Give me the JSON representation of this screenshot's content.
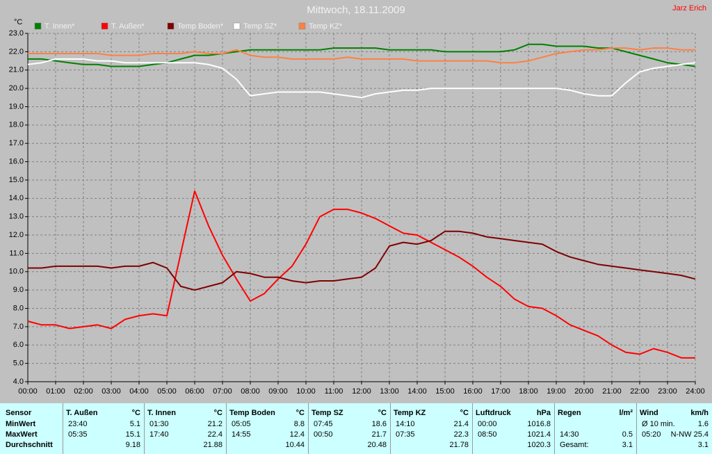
{
  "chart_data": {
    "type": "line",
    "title": "Mittwoch, 18.11.2009",
    "author": "Jarz Erich",
    "y_label": "°C",
    "x": [
      0,
      0.5,
      1,
      1.5,
      2,
      2.5,
      3,
      3.5,
      4,
      4.5,
      5,
      5.5,
      6,
      6.5,
      7,
      7.5,
      8,
      8.5,
      9,
      9.5,
      10,
      10.5,
      11,
      11.5,
      12,
      12.5,
      13,
      13.5,
      14,
      14.5,
      15,
      15.5,
      16,
      16.5,
      17,
      17.5,
      18,
      18.5,
      19,
      19.5,
      20,
      20.5,
      21,
      21.5,
      22,
      22.5,
      23,
      23.5,
      24
    ],
    "xlim": [
      0,
      24
    ],
    "xticks": [
      {
        "value": 0,
        "label": "00:00"
      },
      {
        "value": 1,
        "label": "01:00"
      },
      {
        "value": 2,
        "label": "02:00"
      },
      {
        "value": 3,
        "label": "03:00"
      },
      {
        "value": 4,
        "label": "04:00"
      },
      {
        "value": 5,
        "label": "05:00"
      },
      {
        "value": 6,
        "label": "06:00"
      },
      {
        "value": 7,
        "label": "07:00"
      },
      {
        "value": 8,
        "label": "08:00"
      },
      {
        "value": 9,
        "label": "09:00"
      },
      {
        "value": 10,
        "label": "10:00"
      },
      {
        "value": 11,
        "label": "11:00"
      },
      {
        "value": 12,
        "label": "12:00"
      },
      {
        "value": 13,
        "label": "13:00"
      },
      {
        "value": 14,
        "label": "14:00"
      },
      {
        "value": 15,
        "label": "15:00"
      },
      {
        "value": 16,
        "label": "16:00"
      },
      {
        "value": 17,
        "label": "17:00"
      },
      {
        "value": 18,
        "label": "18:00"
      },
      {
        "value": 19,
        "label": "19:00"
      },
      {
        "value": 20,
        "label": "20:00"
      },
      {
        "value": 21,
        "label": "21:00"
      },
      {
        "value": 22,
        "label": "22:00"
      },
      {
        "value": 23,
        "label": "23:00"
      },
      {
        "value": 24,
        "label": "24:00"
      }
    ],
    "ylim": [
      4,
      23
    ],
    "yticks": [
      {
        "value": 4,
        "label": "4.0"
      },
      {
        "value": 5,
        "label": "5.0"
      },
      {
        "value": 6,
        "label": "6.0"
      },
      {
        "value": 7,
        "label": "7.0"
      },
      {
        "value": 8,
        "label": "8.0"
      },
      {
        "value": 9,
        "label": "9.0"
      },
      {
        "value": 10,
        "label": "10.0"
      },
      {
        "value": 11,
        "label": "11.0"
      },
      {
        "value": 12,
        "label": "12.0"
      },
      {
        "value": 13,
        "label": "13.0"
      },
      {
        "value": 14,
        "label": "14.0"
      },
      {
        "value": 15,
        "label": "15.0"
      },
      {
        "value": 16,
        "label": "16.0"
      },
      {
        "value": 17,
        "label": "17.0"
      },
      {
        "value": 18,
        "label": "18.0"
      },
      {
        "value": 19,
        "label": "19.0"
      },
      {
        "value": 20,
        "label": "20.0"
      },
      {
        "value": 21,
        "label": "21.0"
      },
      {
        "value": 22,
        "label": "22.0"
      },
      {
        "value": 23,
        "label": "23.0"
      }
    ],
    "grid": true,
    "series": [
      {
        "name": "T. Innen*",
        "color": "#008000",
        "values": [
          21.6,
          21.6,
          21.5,
          21.4,
          21.3,
          21.3,
          21.2,
          21.2,
          21.2,
          21.3,
          21.4,
          21.6,
          21.8,
          21.8,
          21.9,
          22.0,
          22.1,
          22.1,
          22.1,
          22.1,
          22.1,
          22.1,
          22.2,
          22.2,
          22.2,
          22.2,
          22.1,
          22.1,
          22.1,
          22.1,
          22.0,
          22.0,
          22.0,
          22.0,
          22.0,
          22.1,
          22.4,
          22.4,
          22.3,
          22.3,
          22.3,
          22.2,
          22.2,
          22.0,
          21.8,
          21.6,
          21.4,
          21.3,
          21.2
        ]
      },
      {
        "name": "T. Außen*",
        "color": "#ff0000",
        "values": [
          7.3,
          7.1,
          7.1,
          6.9,
          7.0,
          7.1,
          6.9,
          7.4,
          7.6,
          7.7,
          7.6,
          11.0,
          14.4,
          12.5,
          10.9,
          9.6,
          8.4,
          8.8,
          9.6,
          10.3,
          11.5,
          13.0,
          13.4,
          13.4,
          13.2,
          12.9,
          12.5,
          12.1,
          12.0,
          11.6,
          11.2,
          10.8,
          10.3,
          9.7,
          9.2,
          8.5,
          8.1,
          8.0,
          7.6,
          7.1,
          6.8,
          6.5,
          6.0,
          5.6,
          5.5,
          5.8,
          5.6,
          5.3,
          5.3
        ]
      },
      {
        "name": "Temp Boden*",
        "color": "#800000",
        "values": [
          10.2,
          10.2,
          10.3,
          10.3,
          10.3,
          10.3,
          10.2,
          10.3,
          10.3,
          10.5,
          10.2,
          9.2,
          9.0,
          9.2,
          9.4,
          10.0,
          9.9,
          9.7,
          9.7,
          9.5,
          9.4,
          9.5,
          9.5,
          9.6,
          9.7,
          10.2,
          11.4,
          11.6,
          11.5,
          11.7,
          12.2,
          12.2,
          12.1,
          11.9,
          11.8,
          11.7,
          11.6,
          11.5,
          11.1,
          10.8,
          10.6,
          10.4,
          10.3,
          10.2,
          10.1,
          10.0,
          9.9,
          9.8,
          9.6
        ]
      },
      {
        "name": "Temp SZ*",
        "color": "#ffffff",
        "values": [
          21.3,
          21.4,
          21.6,
          21.6,
          21.6,
          21.5,
          21.5,
          21.4,
          21.4,
          21.4,
          21.4,
          21.4,
          21.4,
          21.3,
          21.1,
          20.5,
          19.6,
          19.7,
          19.8,
          19.8,
          19.8,
          19.8,
          19.7,
          19.6,
          19.5,
          19.7,
          19.8,
          19.9,
          19.9,
          20.0,
          20.0,
          20.0,
          20.0,
          20.0,
          20.0,
          20.0,
          20.0,
          20.0,
          20.0,
          19.9,
          19.7,
          19.6,
          19.6,
          20.3,
          20.9,
          21.1,
          21.2,
          21.3,
          21.4
        ]
      },
      {
        "name": "Temp KZ*",
        "color": "#ff8040",
        "values": [
          21.9,
          21.9,
          21.9,
          21.9,
          21.9,
          21.9,
          21.8,
          21.8,
          21.8,
          21.9,
          21.9,
          21.9,
          22.0,
          21.9,
          21.9,
          22.1,
          21.8,
          21.7,
          21.7,
          21.6,
          21.6,
          21.6,
          21.6,
          21.7,
          21.6,
          21.6,
          21.6,
          21.6,
          21.5,
          21.5,
          21.5,
          21.5,
          21.5,
          21.5,
          21.4,
          21.4,
          21.5,
          21.7,
          21.9,
          22.0,
          22.1,
          22.1,
          22.2,
          22.2,
          22.1,
          22.2,
          22.2,
          22.1,
          22.1
        ]
      }
    ]
  },
  "stats_table": {
    "row_labels": [
      "Sensor",
      "MinWert",
      "MaxWert",
      "Durchschnitt"
    ],
    "groups": [
      {
        "name": "T. Außen",
        "unit": "°C",
        "min": {
          "time": "23:40",
          "value": "5.1"
        },
        "max": {
          "time": "05:35",
          "value": "15.1"
        },
        "avg": {
          "value": "9.18"
        }
      },
      {
        "name": "T. Innen",
        "unit": "°C",
        "min": {
          "time": "01:30",
          "value": "21.2"
        },
        "max": {
          "time": "17:40",
          "value": "22.4"
        },
        "avg": {
          "value": "21.88"
        }
      },
      {
        "name": "Temp Boden",
        "unit": "°C",
        "min": {
          "time": "05:05",
          "value": "8.8"
        },
        "max": {
          "time": "14:55",
          "value": "12.4"
        },
        "avg": {
          "value": "10.44"
        }
      },
      {
        "name": "Temp SZ",
        "unit": "°C",
        "min": {
          "time": "07:45",
          "value": "18.6"
        },
        "max": {
          "time": "00:50",
          "value": "21.7"
        },
        "avg": {
          "value": "20.48"
        }
      },
      {
        "name": "Temp KZ",
        "unit": "°C",
        "min": {
          "time": "14:10",
          "value": "21.4"
        },
        "max": {
          "time": "07:35",
          "value": "22.3"
        },
        "avg": {
          "value": "21.78"
        }
      },
      {
        "name": "Luftdruck",
        "unit": "hPa",
        "min": {
          "time": "00:00",
          "value": "1016.8"
        },
        "max": {
          "time": "08:50",
          "value": "1021.4"
        },
        "avg": {
          "value": "1020.3"
        }
      },
      {
        "name": "Regen",
        "unit": "l/m²",
        "max": {
          "time": "14:30",
          "value": "0.5"
        },
        "avg": {
          "time": "Gesamt:",
          "value": "3.1"
        }
      },
      {
        "name": "Wind",
        "unit": "km/h",
        "min": {
          "time": "Ø 10 min.",
          "value": "1.6"
        },
        "max": {
          "time": "05:20",
          "value": "N-NW 25.4"
        },
        "avg": {
          "value": "3.1"
        }
      }
    ]
  }
}
